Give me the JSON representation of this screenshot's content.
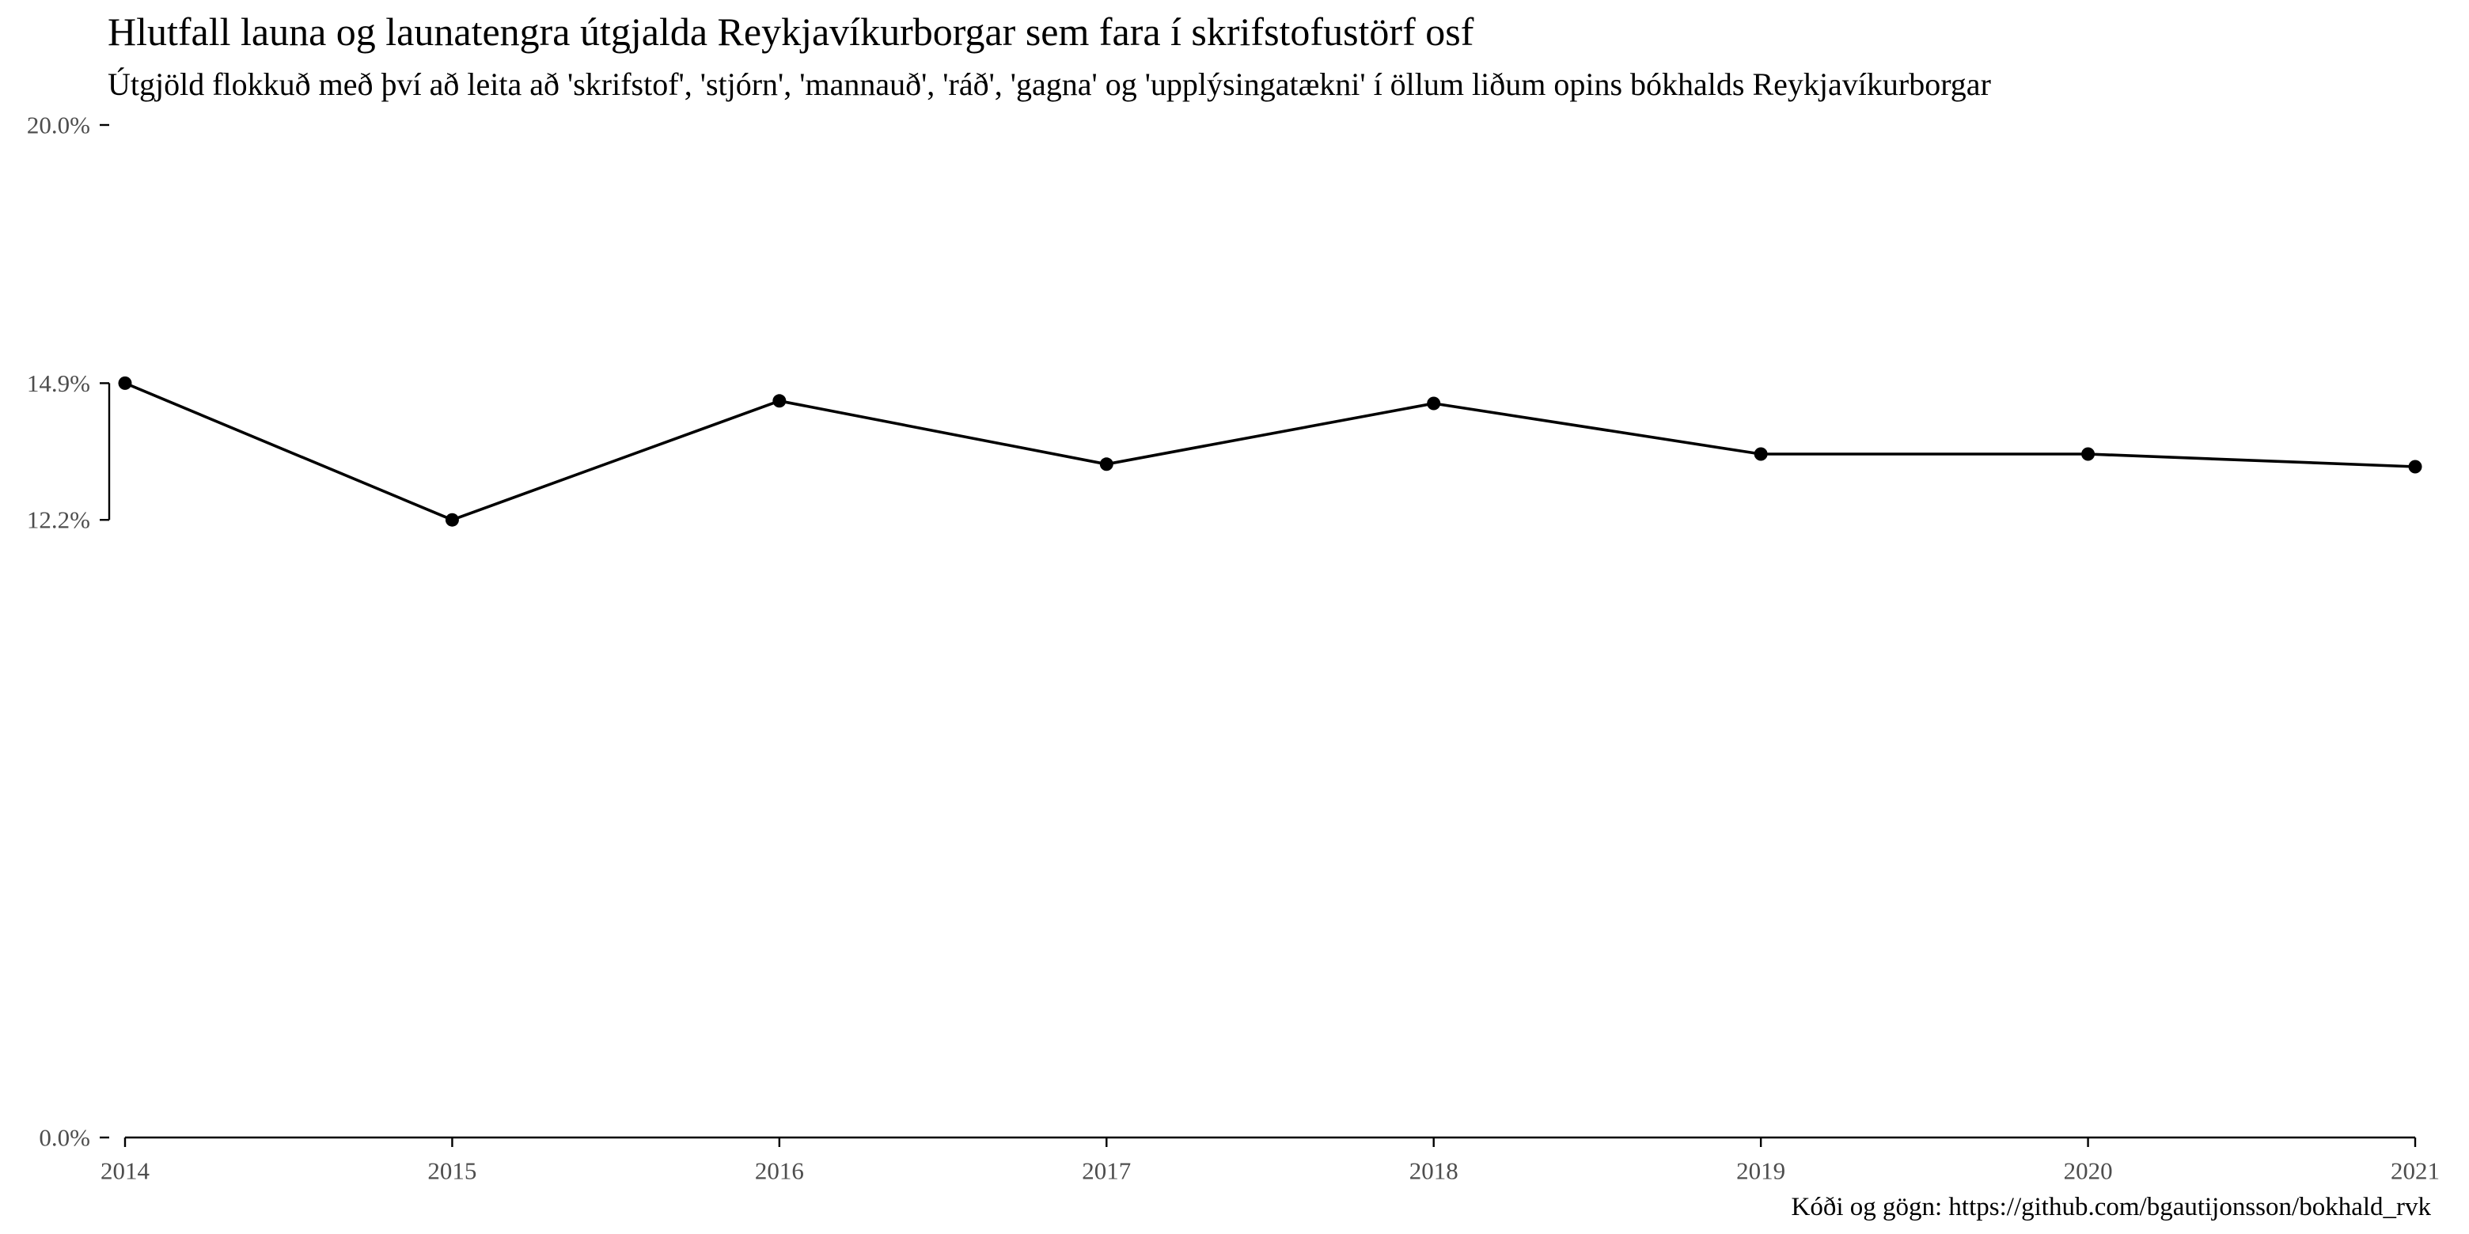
{
  "chart_data": {
    "type": "line",
    "title": "Hlutfall launa og launatengra útgjalda Reykjavíkurborgar sem fara í skrifstofustörf osf",
    "subtitle": "Útgjöld flokkuð með því að leita að 'skrifstof', 'stjórn', 'mannauð', 'ráð', 'gagna' og 'upplýsingatækni' í öllum liðum opins bókhalds Reykjavíkurborgar",
    "caption": "Kóði og gögn: https://github.com/bgautijonsson/bokhald_rvk",
    "xlabel": "",
    "ylabel": "",
    "x": [
      2014,
      2015,
      2016,
      2017,
      2018,
      2019,
      2020,
      2021
    ],
    "series": [
      {
        "values": [
          14.9,
          12.2,
          14.55,
          13.3,
          14.5,
          13.5,
          13.5,
          13.25
        ]
      }
    ],
    "ylim": [
      0,
      20
    ],
    "xlim": [
      2014,
      2021
    ],
    "y_ticks": [
      0,
      12.2,
      14.9,
      20
    ],
    "y_tick_labels": [
      "0.0%",
      "12.2%",
      "14.9%",
      "20.0%"
    ],
    "x_ticks": [
      2014,
      2015,
      2016,
      2017,
      2018,
      2019,
      2020,
      2021
    ],
    "x_tick_labels": [
      "2014",
      "2015",
      "2016",
      "2017",
      "2018",
      "2019",
      "2020",
      "2021"
    ],
    "grid": false,
    "legend": "none",
    "colors": {
      "line": "#000000",
      "points": "#000000",
      "axis": "#000000",
      "tick_text": "#4d4d4d"
    }
  }
}
